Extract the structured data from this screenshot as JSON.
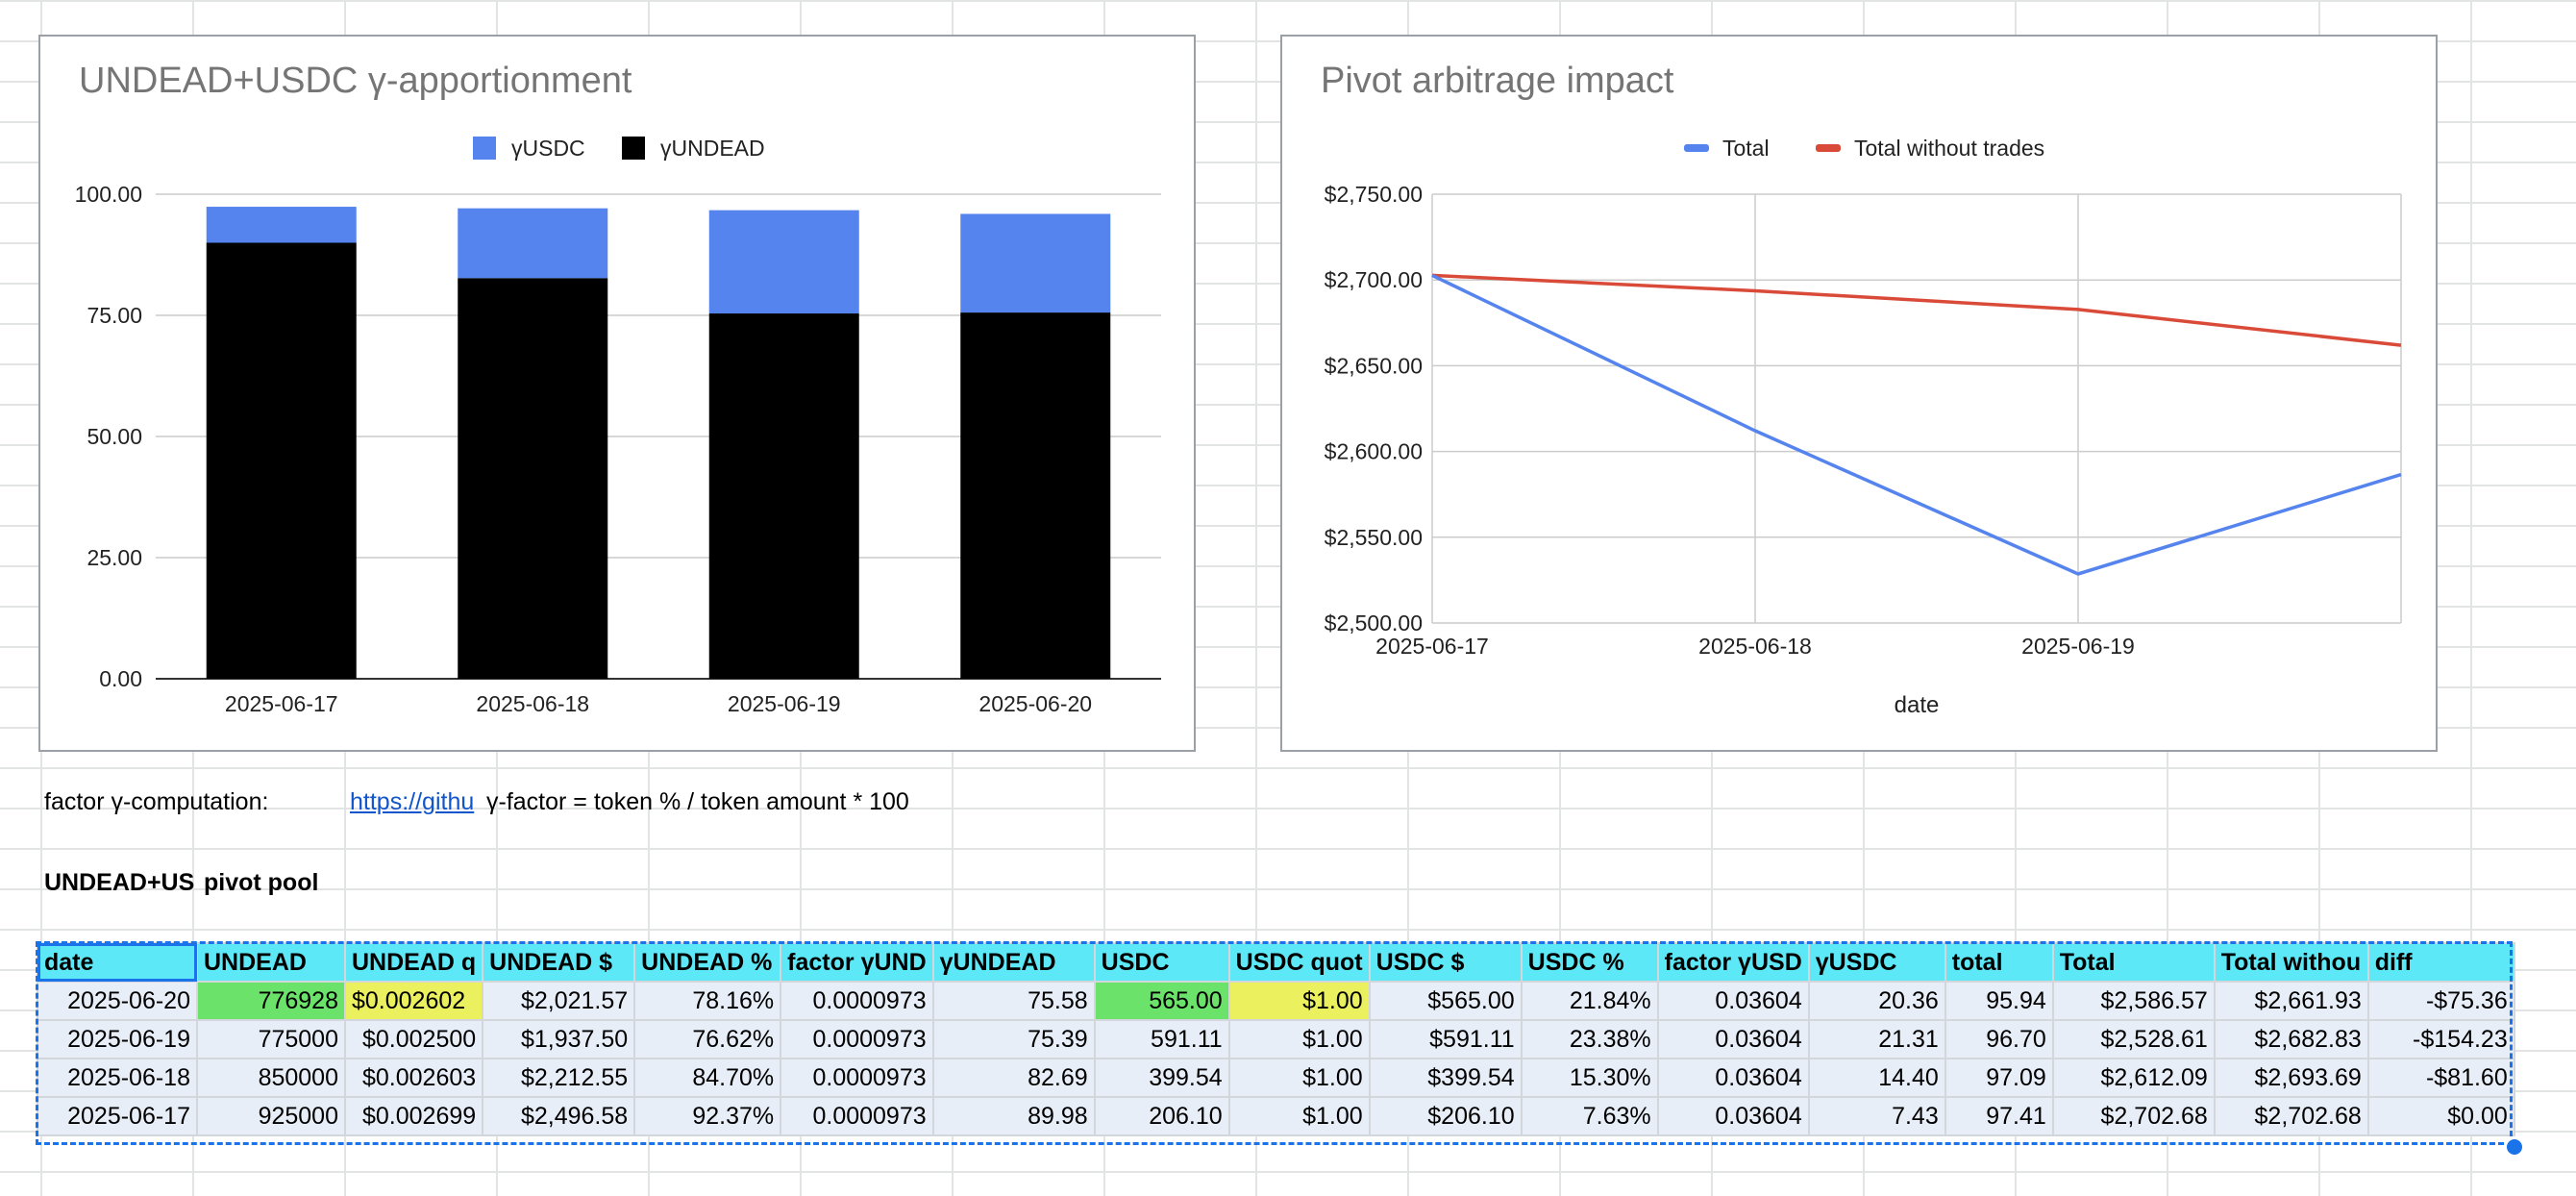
{
  "chart_data": [
    {
      "type": "bar",
      "stacked": true,
      "title": "UNDEAD+USDC γ-apportionment",
      "categories": [
        "2025-06-17",
        "2025-06-18",
        "2025-06-19",
        "2025-06-20"
      ],
      "series": [
        {
          "name": "γUNDEAD",
          "color": "#000000",
          "values": [
            89.98,
            82.69,
            75.39,
            75.58
          ]
        },
        {
          "name": "γUSDC",
          "color": "#5584ee",
          "values": [
            7.43,
            14.4,
            21.31,
            20.36
          ]
        }
      ],
      "legend_order": [
        "γUSDC",
        "γUNDEAD"
      ],
      "yticks": [
        "100.00",
        "75.00",
        "50.00",
        "25.00",
        "0.00"
      ],
      "ylim": [
        0,
        100
      ],
      "legend_position": "top",
      "grid": true
    },
    {
      "type": "line",
      "title": "Pivot arbitrage impact",
      "xlabel": "date",
      "x": [
        "2025-06-17",
        "2025-06-18",
        "2025-06-19",
        "2025-06-20"
      ],
      "xticks": [
        "2025-06-17",
        "2025-06-18",
        "2025-06-19"
      ],
      "series": [
        {
          "name": "Total",
          "color": "#5584ee",
          "values": [
            2702.68,
            2612.09,
            2528.61,
            2586.57
          ]
        },
        {
          "name": "Total without trades",
          "color": "#d94a38",
          "values": [
            2702.68,
            2693.69,
            2682.83,
            2661.93
          ]
        }
      ],
      "yticks": [
        "$2,750.00",
        "$2,700.00",
        "$2,650.00",
        "$2,600.00",
        "$2,550.00",
        "$2,500.00"
      ],
      "ylim": [
        2500,
        2750
      ],
      "legend_position": "top",
      "grid": true
    }
  ],
  "notes": {
    "label": "factor γ-computation:",
    "link_text": "https://githu",
    "formula": "γ-factor = token % / token amount * 100",
    "pool_label_a": "UNDEAD+US",
    "pool_label_b": "pivot pool"
  },
  "table": {
    "headers": [
      "date",
      "UNDEAD",
      "UNDEAD q",
      "UNDEAD $",
      "UNDEAD %",
      "factor γUND",
      "γUNDEAD",
      "USDC",
      "USDC quot",
      "USDC $",
      "USDC %",
      "factor γUSD",
      "γUSDC",
      "total",
      "Total",
      "Total withou",
      "diff"
    ],
    "rows": [
      [
        "2025-06-20",
        "776928",
        "$0.002602",
        "$2,021.57",
        "78.16%",
        "0.0000973",
        "75.58",
        "565.00",
        "$1.00",
        "$565.00",
        "21.84%",
        "0.03604",
        "20.36",
        "95.94",
        "$2,586.57",
        "$2,661.93",
        "-$75.36"
      ],
      [
        "2025-06-19",
        "775000",
        "$0.002500",
        "$1,937.50",
        "76.62%",
        "0.0000973",
        "75.39",
        "591.11",
        "$1.00",
        "$591.11",
        "23.38%",
        "0.03604",
        "21.31",
        "96.70",
        "$2,528.61",
        "$2,682.83",
        "-$154.23"
      ],
      [
        "2025-06-18",
        "850000",
        "$0.002603",
        "$2,212.55",
        "84.70%",
        "0.0000973",
        "82.69",
        "399.54",
        "$1.00",
        "$399.54",
        "15.30%",
        "0.03604",
        "14.40",
        "97.09",
        "$2,612.09",
        "$2,693.69",
        "-$81.60"
      ],
      [
        "2025-06-17",
        "925000",
        "$0.002699",
        "$2,496.58",
        "92.37%",
        "0.0000973",
        "89.98",
        "206.10",
        "$1.00",
        "$206.10",
        "7.63%",
        "0.03604",
        "7.43",
        "97.41",
        "$2,702.68",
        "$2,702.68",
        "$0.00"
      ]
    ]
  }
}
